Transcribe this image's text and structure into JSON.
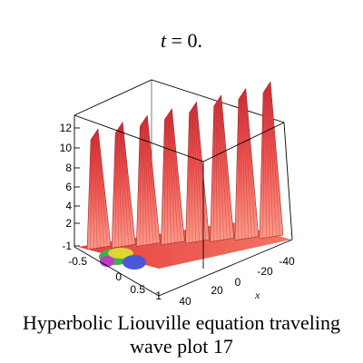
{
  "title": {
    "var": "t",
    "rest": " = 0."
  },
  "caption": {
    "line1": "Hyperbolic Liouville equation  traveling",
    "line2": "wave plot 17"
  },
  "plot": {
    "z_ticks": [
      "12",
      "10",
      "8",
      "6",
      "4",
      "2",
      "-1"
    ],
    "y_ticks": [
      "-0.5",
      "0",
      "0.5",
      "1"
    ],
    "x_ticks": [
      "40",
      "20",
      "0",
      "-20",
      "-40"
    ],
    "x_axis_label": "x",
    "surface_color": "#e83a3a",
    "wave_count": 8
  }
}
